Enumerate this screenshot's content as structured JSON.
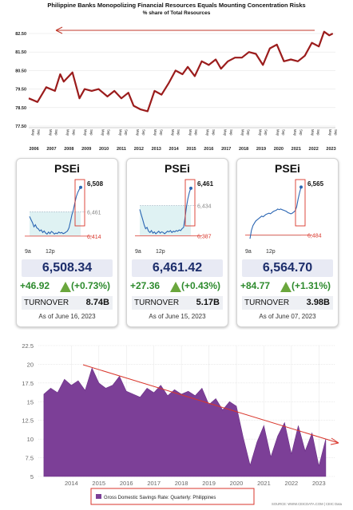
{
  "chart_data": [
    {
      "type": "line",
      "title": "Philippine Banks Monopolizing Financial Resources Equals Mounting Concentration Risks",
      "subtitle": "% share of Total Resources",
      "y_ticks": [
        "77.50",
        "78.50",
        "79.50",
        "80.50",
        "81.50",
        "82.50"
      ],
      "ylim": [
        77.5,
        82.5
      ],
      "x_years": [
        "2006",
        "2007",
        "2008",
        "2009",
        "2010",
        "2011",
        "2012",
        "2013",
        "2014",
        "2015",
        "2016",
        "2017",
        "2018",
        "2019",
        "2020",
        "2021",
        "2022",
        "2023"
      ],
      "x_months": [
        "May",
        "Sep"
      ],
      "series": [
        {
          "color": "#9b1c1c",
          "x": [
            2006.0,
            2006.5,
            2007.0,
            2007.5,
            2007.8,
            2008.0,
            2008.5,
            2008.9,
            2009.2,
            2009.6,
            2010.0,
            2010.5,
            2010.9,
            2011.3,
            2011.7,
            2012.0,
            2012.4,
            2012.8,
            2013.2,
            2013.6,
            2014.0,
            2014.4,
            2014.8,
            2015.1,
            2015.5,
            2015.9,
            2016.3,
            2016.7,
            2017.0,
            2017.4,
            2017.8,
            2018.2,
            2018.6,
            2019.0,
            2019.4,
            2019.8,
            2020.2,
            2020.6,
            2021.0,
            2021.4,
            2021.8,
            2022.2,
            2022.6,
            2022.9,
            2023.2,
            2023.4
          ],
          "y": [
            79.0,
            78.8,
            79.6,
            79.4,
            80.3,
            79.9,
            80.4,
            79.0,
            79.5,
            79.4,
            79.5,
            79.1,
            79.4,
            79.0,
            79.3,
            78.6,
            78.4,
            78.3,
            79.4,
            79.2,
            79.8,
            80.5,
            80.3,
            80.7,
            80.2,
            81.0,
            80.8,
            81.1,
            80.6,
            81.0,
            81.2,
            81.2,
            81.5,
            81.4,
            80.8,
            81.7,
            81.9,
            81.0,
            81.1,
            81.0,
            81.3,
            82.0,
            81.8,
            82.6,
            82.4,
            82.5
          ]
        }
      ],
      "annotation": "arrow pointing back to the left from the latest reading"
    },
    {
      "type": "line",
      "title": "PSEi",
      "price": "6,508.34",
      "change": "+46.92",
      "change_pct": "(+0.73%)",
      "turnover_label": "TURNOVER",
      "turnover": "8.74B",
      "as_of": "As of June 16, 2023",
      "x_ticks": [
        "9a",
        "12p"
      ],
      "high_label": "6,508",
      "prev_label": "6,461",
      "low_label": "6,414",
      "ylim": [
        6400,
        6520
      ],
      "prev": 6461,
      "low": 6414,
      "x": [
        0,
        2,
        4,
        6,
        8,
        10,
        12,
        14,
        16,
        18,
        20,
        22,
        24,
        26,
        28,
        30,
        32,
        34,
        36,
        38,
        40,
        42,
        44,
        46,
        48,
        50,
        52,
        54,
        56,
        58,
        60,
        62,
        64,
        66,
        68,
        70
      ],
      "y": [
        6452,
        6446,
        6440,
        6432,
        6436,
        6430,
        6428,
        6424,
        6426,
        6421,
        6424,
        6420,
        6418,
        6422,
        6419,
        6423,
        6421,
        6418,
        6420,
        6419,
        6422,
        6420,
        6421,
        6419,
        6420,
        6422,
        6424,
        6430,
        6442,
        6455,
        6465,
        6478,
        6490,
        6498,
        6504,
        6508
      ]
    },
    {
      "type": "line",
      "title": "PSEi",
      "price": "6,461.42",
      "change": "+27.36",
      "change_pct": "(+0.43%)",
      "turnover_label": "TURNOVER",
      "turnover": "5.17B",
      "as_of": "As of June 15, 2023",
      "x_ticks": [
        "9a",
        "12p"
      ],
      "high_label": "6,461",
      "prev_label": "6,434",
      "low_label": "6,387",
      "ylim": [
        6375,
        6472
      ],
      "prev": 6434,
      "low": 6387,
      "x": [
        0,
        2,
        4,
        6,
        8,
        10,
        12,
        14,
        16,
        18,
        20,
        22,
        24,
        26,
        28,
        30,
        32,
        34,
        36,
        38,
        40,
        42,
        44,
        46,
        48,
        50,
        52,
        54,
        56,
        58,
        60,
        62,
        64,
        66,
        68,
        70
      ],
      "y": [
        6428,
        6420,
        6412,
        6404,
        6398,
        6400,
        6394,
        6392,
        6395,
        6391,
        6393,
        6390,
        6392,
        6394,
        6391,
        6393,
        6392,
        6390,
        6392,
        6394,
        6393,
        6395,
        6392,
        6394,
        6393,
        6395,
        6394,
        6396,
        6395,
        6398,
        6400,
        6415,
        6432,
        6445,
        6455,
        6461
      ]
    },
    {
      "type": "line",
      "title": "PSEi",
      "price": "6,564.70",
      "change": "+84.77",
      "change_pct": "(+1.31%)",
      "turnover_label": "TURNOVER",
      "turnover": "3.98B",
      "as_of": "As of June 07, 2023",
      "x_ticks": [
        "9a",
        "12p"
      ],
      "high_label": "6,565",
      "low_label": "6,484",
      "ylim": [
        6470,
        6575
      ],
      "prev": 6484,
      "low": 6484,
      "x": [
        0,
        2,
        4,
        6,
        8,
        10,
        12,
        14,
        16,
        18,
        20,
        22,
        24,
        26,
        28,
        30,
        32,
        34,
        36,
        38,
        40,
        42,
        44,
        46,
        48,
        50,
        52,
        54,
        56,
        58,
        60,
        62,
        64,
        66,
        68,
        70
      ],
      "y": [
        6478,
        6492,
        6500,
        6504,
        6508,
        6510,
        6512,
        6514,
        6516,
        6515,
        6517,
        6519,
        6520,
        6521,
        6520,
        6522,
        6524,
        6525,
        6526,
        6528,
        6527,
        6528,
        6527,
        6526,
        6525,
        6524,
        6522,
        6521,
        6520,
        6521,
        6523,
        6525,
        6532,
        6545,
        6556,
        6565
      ]
    },
    {
      "type": "area",
      "legend": "Gross Domestic Savings Rate: Quarterly: Philippines",
      "source": "SOURCE: WWW.CEICDATA.COM | CEIC Data",
      "y_ticks": [
        "5",
        "7.5",
        "10",
        "12.5",
        "15",
        "17.5",
        "20",
        "22.5"
      ],
      "ylim": [
        5,
        22.5
      ],
      "x_ticks": [
        "2014",
        "2015",
        "2016",
        "2017",
        "2018",
        "2019",
        "2020",
        "2021",
        "2022",
        "2023"
      ],
      "xlim": [
        2012.8,
        2023.6
      ],
      "series": [
        {
          "name": "Gross Domestic Savings Rate: Quarterly: Philippines",
          "color": "#7c3f97",
          "x": [
            2013.0,
            2013.25,
            2013.5,
            2013.75,
            2014.0,
            2014.25,
            2014.5,
            2014.75,
            2015.0,
            2015.25,
            2015.5,
            2015.75,
            2016.0,
            2016.25,
            2016.5,
            2016.75,
            2017.0,
            2017.25,
            2017.5,
            2017.75,
            2018.0,
            2018.25,
            2018.5,
            2018.75,
            2019.0,
            2019.25,
            2019.5,
            2019.75,
            2020.0,
            2020.25,
            2020.5,
            2020.75,
            2021.0,
            2021.25,
            2021.5,
            2021.75,
            2022.0,
            2022.25,
            2022.5,
            2022.75,
            2023.0,
            2023.25
          ],
          "y": [
            16.0,
            16.8,
            16.2,
            18.0,
            17.2,
            17.8,
            16.5,
            19.5,
            17.5,
            16.8,
            17.2,
            18.4,
            16.4,
            16.0,
            15.6,
            16.8,
            16.2,
            17.2,
            15.8,
            16.6,
            16.0,
            16.4,
            15.8,
            16.8,
            14.6,
            15.4,
            13.9,
            15.0,
            14.4,
            10.2,
            6.5,
            9.6,
            11.8,
            7.6,
            10.4,
            12.2,
            8.0,
            11.8,
            8.4,
            10.8,
            6.4,
            10.0
          ]
        }
      ],
      "trend_arrow": "downward arrow from 2014 highs to 2023"
    }
  ]
}
